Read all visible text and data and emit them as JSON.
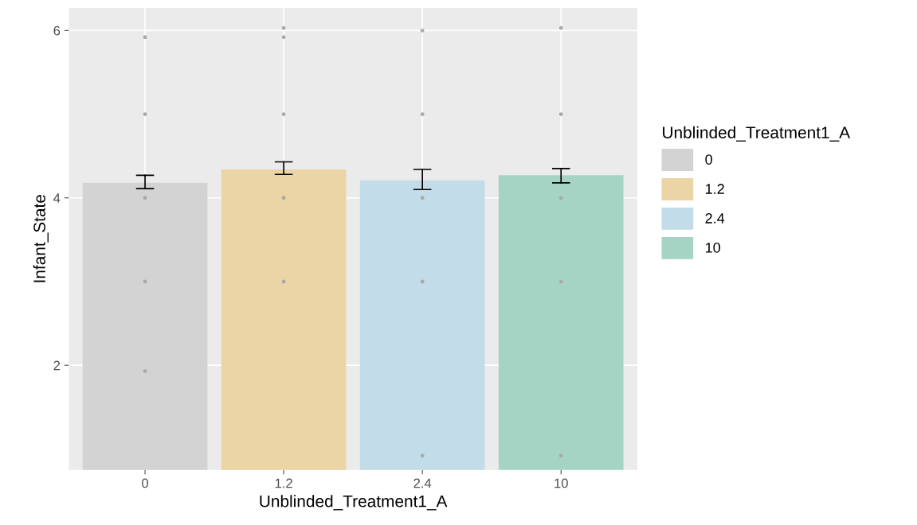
{
  "chart_data": {
    "type": "bar",
    "xlabel": "Unblinded_Treatment1_A",
    "ylabel": "Infant_State",
    "legend_title": "Unblinded_Treatment1_A",
    "categories": [
      "0",
      "1.2",
      "2.4",
      "10"
    ],
    "series": [
      {
        "name": "0",
        "color": "#d3d3d3",
        "values": [
          4.18,
          null,
          null,
          null
        ],
        "errors": [
          [
            4.11,
            4.27
          ],
          null,
          null,
          null
        ]
      },
      {
        "name": "1.2",
        "color": "#ebd5a5",
        "values": [
          null,
          4.34,
          null,
          null
        ],
        "errors": [
          null,
          [
            4.28,
            4.43
          ],
          null,
          null
        ]
      },
      {
        "name": "2.4",
        "color": "#c3dcea",
        "values": [
          null,
          null,
          4.21,
          null
        ],
        "errors": [
          null,
          null,
          [
            4.1,
            4.34
          ],
          null
        ]
      },
      {
        "name": "10",
        "color": "#a5d4c5",
        "values": [
          null,
          null,
          null,
          4.27
        ],
        "errors": [
          null,
          null,
          null,
          [
            4.18,
            4.35
          ]
        ]
      },
      {
        "type": "scatter",
        "color": "#a9a9a9",
        "x": [
          "0",
          "0",
          "0",
          "0",
          "0",
          "1.2",
          "1.2",
          "1.2",
          "1.2",
          "1.2",
          "2.4",
          "2.4",
          "2.4",
          "2.4",
          "2.4",
          "10",
          "10",
          "10",
          "10",
          "10"
        ],
        "values": [
          5.92,
          5,
          4,
          3,
          1.93,
          6.03,
          5.92,
          5,
          4,
          3,
          6,
          5,
          4,
          3,
          0.92,
          6.03,
          5,
          4,
          3,
          0.92
        ]
      }
    ],
    "ylim": [
      0.75,
      6.27
    ],
    "yticks": [
      2,
      4,
      6
    ],
    "grid": true,
    "legend": "right"
  }
}
